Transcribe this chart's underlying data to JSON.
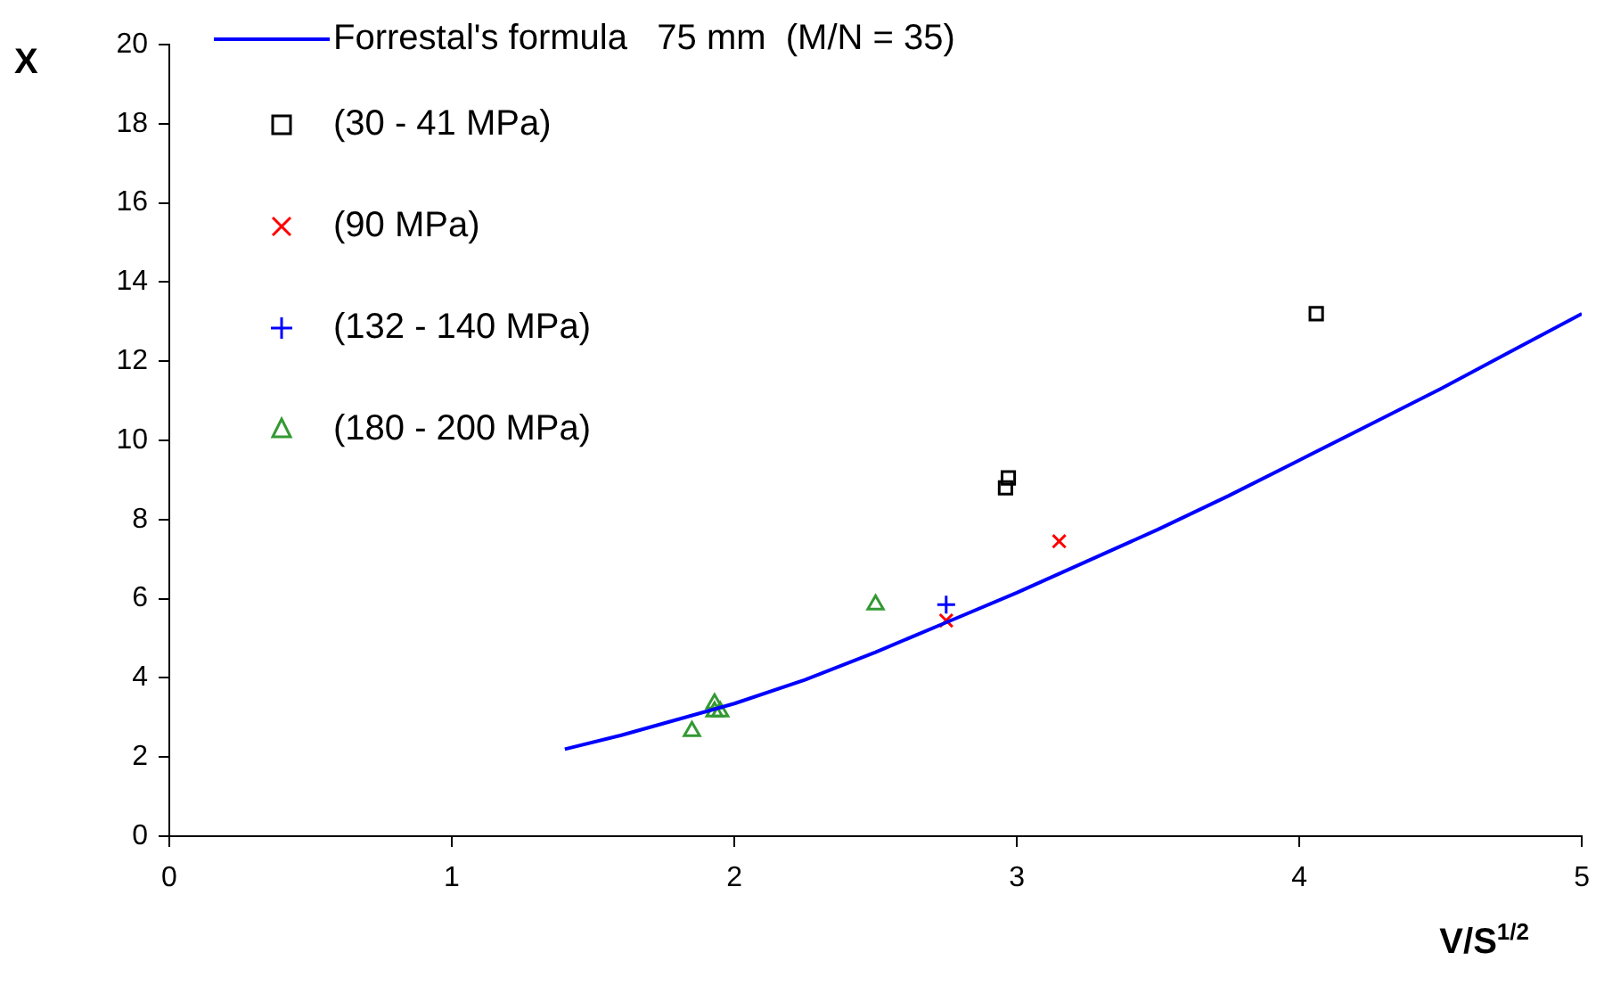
{
  "chart_data": {
    "type": "scatter",
    "xlabel": "V/S$^{1/2}$",
    "ylabel": "X",
    "xlim": [
      0,
      5
    ],
    "xticks": [
      0,
      1,
      2,
      3,
      4,
      5
    ],
    "ylim": [
      0,
      20
    ],
    "yticks": [
      0,
      2,
      4,
      6,
      8,
      10,
      12,
      14,
      16,
      18,
      20
    ],
    "grid": false,
    "legend": "top left",
    "series": [
      {
        "name": "Forrestal's formula   75 mm  (M/N = 35)",
        "type": "line",
        "marker": "none",
        "color": "#0000ff",
        "x": [
          1.4,
          1.6,
          1.8,
          2.0,
          2.25,
          2.5,
          2.75,
          3.0,
          3.25,
          3.5,
          3.75,
          4.0,
          4.25,
          4.5,
          4.75,
          5.0
        ],
        "values": [
          2.2,
          2.55,
          2.95,
          3.35,
          3.95,
          4.65,
          5.4,
          6.15,
          6.95,
          7.75,
          8.6,
          9.5,
          10.4,
          11.3,
          12.25,
          13.2
        ]
      },
      {
        "name": "(30 - 41 MPa)",
        "marker": "square",
        "color": "#000000",
        "x": [
          2.96,
          2.97,
          4.06
        ],
        "values": [
          8.8,
          9.05,
          13.2
        ]
      },
      {
        "name": "(90 MPa)",
        "marker": "cross",
        "color": "#ff0000",
        "x": [
          2.75,
          3.15
        ],
        "values": [
          5.45,
          7.45
        ]
      },
      {
        "name": "(132 - 140 MPa)",
        "marker": "plus",
        "color": "#0000ff",
        "x": [
          2.75
        ],
        "values": [
          5.85
        ]
      },
      {
        "name": "(180 - 200 MPa)",
        "marker": "triangle",
        "color": "#339933",
        "x": [
          1.85,
          1.93,
          1.93,
          1.95,
          2.5
        ],
        "values": [
          2.65,
          3.35,
          3.15,
          3.15,
          5.85
        ]
      }
    ]
  }
}
